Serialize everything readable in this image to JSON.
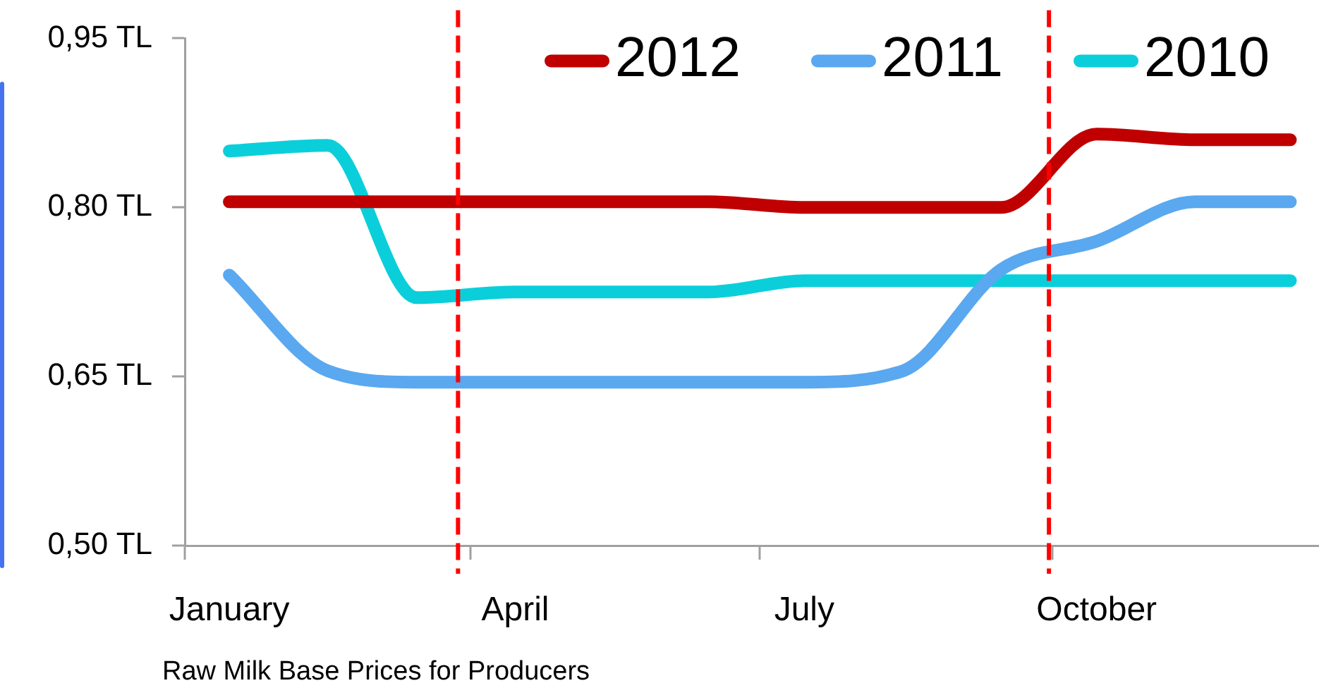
{
  "chart_data": {
    "type": "line",
    "x": [
      "--01-15",
      "--02-15",
      "--03-15",
      "--04-15",
      "--05-15",
      "--06-15",
      "--07-15",
      "--08-15",
      "--09-15",
      "--10-15",
      "--11-15",
      "--12-15"
    ],
    "xlim": [
      "--01-01",
      "--12-24"
    ],
    "xticks": [
      {
        "value": "--01-01",
        "label": null
      },
      {
        "value": "--01-15",
        "label": "January"
      },
      {
        "value": "--04-01",
        "label": null
      },
      {
        "value": "--04-15",
        "label": "April"
      },
      {
        "value": "--07-01",
        "label": null
      },
      {
        "value": "--07-15",
        "label": "July"
      },
      {
        "value": "--10-01",
        "label": null
      },
      {
        "value": "--10-15",
        "label": "October"
      }
    ],
    "ylim": [
      0.5,
      0.95
    ],
    "yticks": [
      {
        "value": 0.5,
        "label": "0,50 TL"
      },
      {
        "value": 0.65,
        "label": "0,65 TL"
      },
      {
        "value": 0.8,
        "label": "0,80 TL"
      },
      {
        "value": 0.95,
        "label": "0,95 TL"
      }
    ],
    "series": [
      {
        "name": "2012",
        "color": "#c00000",
        "values": [
          0.805,
          0.805,
          0.805,
          0.805,
          0.805,
          0.805,
          0.8,
          0.8,
          0.8,
          0.865,
          0.86,
          0.86
        ]
      },
      {
        "name": "2011",
        "color": "#5aa8ef",
        "values": [
          0.74,
          0.655,
          0.645,
          0.645,
          0.645,
          0.645,
          0.645,
          0.655,
          0.745,
          0.77,
          0.805,
          0.805
        ]
      },
      {
        "name": "2010",
        "color": "#0acfda",
        "values": [
          0.85,
          0.855,
          0.72,
          0.725,
          0.725,
          0.725,
          0.735,
          0.735,
          0.735,
          0.735,
          0.735,
          0.735
        ]
      }
    ],
    "ref_lines": [
      {
        "axis": "x",
        "value": "--03-28",
        "color": "#ff0000",
        "line_style": "dashed"
      },
      {
        "axis": "x",
        "value": "--09-30",
        "color": "#ff0000",
        "line_style": "dashed"
      }
    ],
    "legend": "top right",
    "grid": false,
    "marker": "none",
    "line_style": "solid",
    "annotations": [
      "Raw Milk Base Prices for Producers"
    ]
  }
}
